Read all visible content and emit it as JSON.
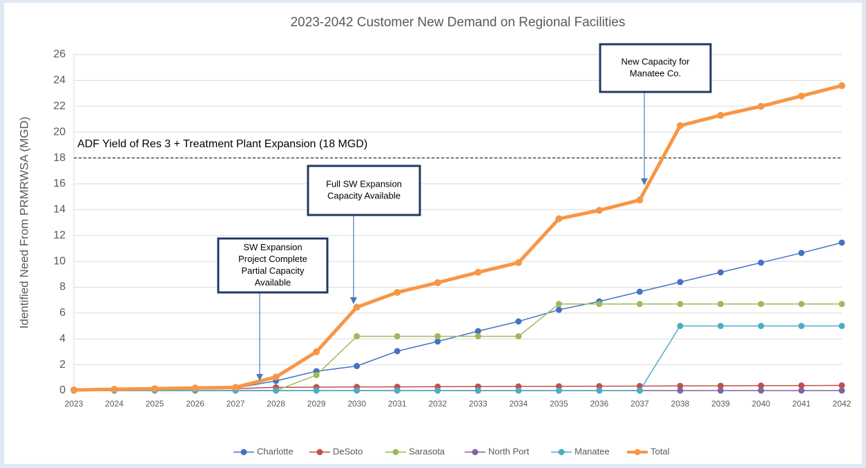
{
  "chart_data": {
    "type": "line",
    "title": "2023-2042 Customer New Demand on Regional Facilities",
    "y_label": "Identified Need From PRMRWSA (MGD)",
    "categories": [
      "2023",
      "2024",
      "2025",
      "2026",
      "2027",
      "2028",
      "2029",
      "2030",
      "2031",
      "2032",
      "2033",
      "2034",
      "2035",
      "2036",
      "2037",
      "2038",
      "2039",
      "2040",
      "2041",
      "2042"
    ],
    "series": [
      {
        "name": "Charlotte",
        "color": "#4472c4",
        "values": [
          0,
          0.05,
          0.1,
          0.15,
          0.2,
          0.75,
          1.5,
          1.9,
          3.05,
          3.8,
          4.6,
          5.35,
          6.25,
          6.9,
          7.65,
          8.4,
          9.15,
          9.9,
          10.65,
          11.45
        ]
      },
      {
        "name": "DeSoto",
        "color": "#c0504d",
        "values": [
          0.05,
          0.08,
          0.1,
          0.12,
          0.15,
          0.25,
          0.27,
          0.28,
          0.29,
          0.3,
          0.31,
          0.32,
          0.33,
          0.34,
          0.35,
          0.36,
          0.37,
          0.38,
          0.39,
          0.4
        ]
      },
      {
        "name": "Sarasota",
        "color": "#9bbb59",
        "values": [
          0,
          0,
          0,
          0,
          0,
          0,
          1.2,
          4.2,
          4.2,
          4.2,
          4.2,
          4.2,
          6.7,
          6.7,
          6.7,
          6.7,
          6.7,
          6.7,
          6.7,
          6.7
        ]
      },
      {
        "name": "North Port",
        "color": "#8064a2",
        "values": [
          0,
          0,
          0,
          0,
          0,
          0,
          0,
          0,
          0,
          0,
          0,
          0,
          0,
          0,
          0,
          0,
          0,
          0,
          0,
          0
        ]
      },
      {
        "name": "Manatee",
        "color": "#4bacc6",
        "values": [
          0,
          0,
          0,
          0,
          0,
          0,
          0,
          0,
          0,
          0,
          0,
          0,
          0,
          0,
          0,
          5,
          5,
          5,
          5,
          5
        ]
      },
      {
        "name": "Total",
        "color": "#f79646",
        "values": [
          0.05,
          0.1,
          0.15,
          0.2,
          0.25,
          1.05,
          3.0,
          6.45,
          7.6,
          8.35,
          9.15,
          9.9,
          13.3,
          13.95,
          14.75,
          20.5,
          21.3,
          22.0,
          22.8,
          23.6
        ]
      }
    ],
    "ylim": [
      0,
      26
    ],
    "yticks": [
      0,
      2,
      4,
      6,
      8,
      10,
      12,
      14,
      16,
      18,
      20,
      22,
      24,
      26
    ],
    "grid": true,
    "reference_line": {
      "value": 18,
      "label": "ADF Yield of Res 3 + Treatment Plant Expansion (18 MGD)"
    },
    "annotations": [
      {
        "lines": [
          "SW Expansion",
          "Project Complete",
          "Partial Capacity",
          "Available"
        ]
      },
      {
        "lines": [
          "Full SW Expansion",
          "Capacity Available"
        ]
      },
      {
        "lines": [
          "New Capacity for",
          "Manatee Co."
        ]
      }
    ],
    "legend": "bottom"
  }
}
